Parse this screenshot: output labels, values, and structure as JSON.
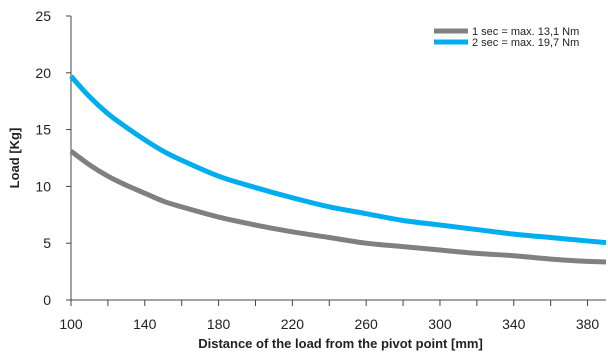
{
  "chart_data": {
    "type": "line",
    "xlabel": "Distance of the load from the pivot point [mm]",
    "ylabel": "Load [Kg]",
    "xlim": [
      100,
      390
    ],
    "ylim": [
      0,
      25
    ],
    "x_ticks": [
      100,
      140,
      180,
      220,
      260,
      300,
      340,
      380
    ],
    "y_ticks": [
      0,
      5,
      10,
      15,
      20,
      25
    ],
    "grid": false,
    "legend_position": "top-right",
    "series": [
      {
        "name": "1 sec = max. 13,1 Nm",
        "color": "#808080",
        "x": [
          100,
          110,
          120,
          130,
          140,
          150,
          160,
          180,
          200,
          220,
          240,
          260,
          280,
          300,
          320,
          340,
          360,
          380,
          390
        ],
        "values": [
          13.1,
          11.9,
          10.9,
          10.1,
          9.4,
          8.7,
          8.2,
          7.3,
          6.6,
          6.0,
          5.5,
          5.0,
          4.7,
          4.4,
          4.1,
          3.9,
          3.6,
          3.4,
          3.35
        ]
      },
      {
        "name": "2 sec = max. 19,7 Nm",
        "color": "#00aeef",
        "x": [
          100,
          110,
          120,
          130,
          140,
          150,
          160,
          180,
          200,
          220,
          240,
          260,
          280,
          300,
          320,
          340,
          360,
          380,
          390
        ],
        "values": [
          19.7,
          17.9,
          16.4,
          15.2,
          14.1,
          13.1,
          12.3,
          10.9,
          9.9,
          9.0,
          8.2,
          7.6,
          7.0,
          6.6,
          6.2,
          5.8,
          5.5,
          5.2,
          5.05
        ]
      }
    ]
  }
}
